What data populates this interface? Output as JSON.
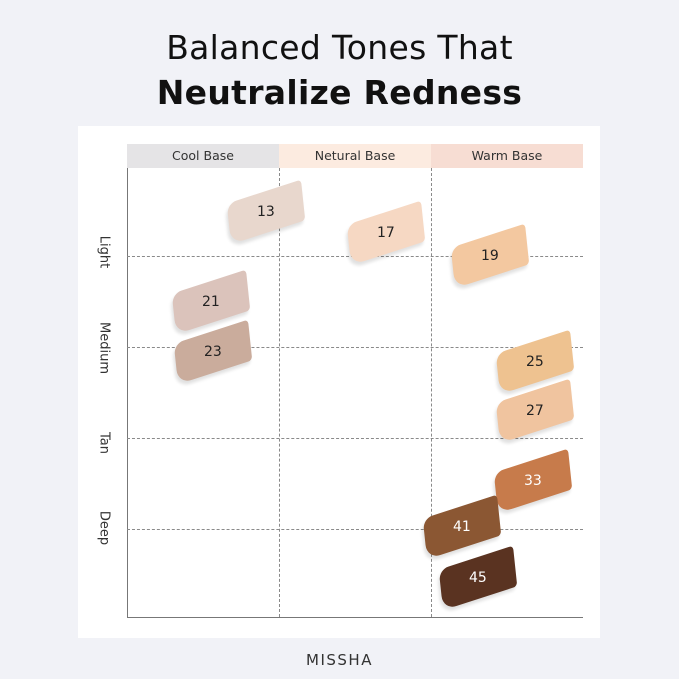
{
  "title": {
    "line1": "Balanced Tones That",
    "line2": "Neutralize Redness"
  },
  "columns": [
    {
      "label": "Cool Base",
      "color": "#e5e4e6"
    },
    {
      "label": "Netural Base",
      "color": "#fcebe0"
    },
    {
      "label": "Warm Base",
      "color": "#f7ddd3"
    }
  ],
  "rows": [
    "Light",
    "Medium",
    "Tan",
    "Deep"
  ],
  "shades": [
    {
      "label": "13",
      "color": "#e8d7cd",
      "text": "#222"
    },
    {
      "label": "17",
      "color": "#f6d8c3",
      "text": "#222"
    },
    {
      "label": "19",
      "color": "#f3c8a0",
      "text": "#222"
    },
    {
      "label": "21",
      "color": "#dbc3bb",
      "text": "#222"
    },
    {
      "label": "23",
      "color": "#caac9c",
      "text": "#222"
    },
    {
      "label": "25",
      "color": "#eec290",
      "text": "#222"
    },
    {
      "label": "27",
      "color": "#f0c49f",
      "text": "#222"
    },
    {
      "label": "33",
      "color": "#c77b4b",
      "text": "#fff"
    },
    {
      "label": "41",
      "color": "#8b5733",
      "text": "#fff"
    },
    {
      "label": "45",
      "color": "#5a3321",
      "text": "#fff"
    }
  ],
  "brand": "MISSHA"
}
